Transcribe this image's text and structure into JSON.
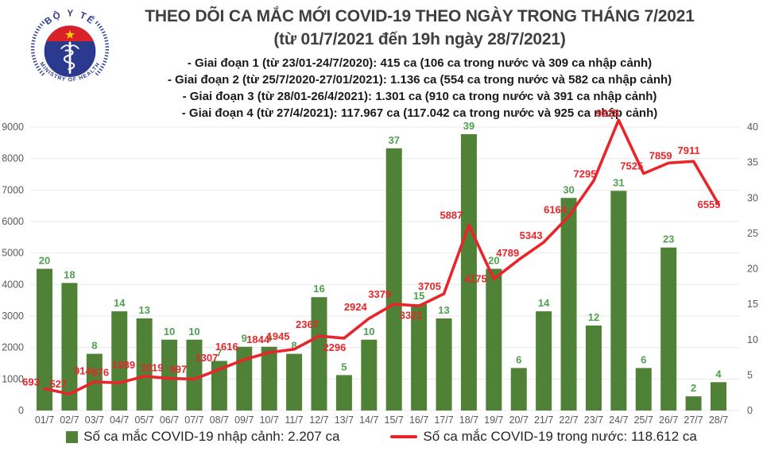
{
  "header": {
    "logo": {
      "top_text": "BỘ Y TẾ",
      "bottom_text": "MINISTRY OF HEALTH"
    },
    "title_line1": "THEO DÕI CA MẮC MỚI COVID-19 THEO NGÀY TRONG THÁNG 7/2021",
    "title_line2": "(từ 01/7/2021 đến 19h ngày 28/7/2021)",
    "bullets": [
      "- Giai đoạn 1 (từ 23/01-24/7/2020): 415 ca (106 ca trong nước và 309 ca nhập cảnh)",
      "- Giai đoạn 2 (từ 25/7/2020-27/01/2021): 1.136 ca (554 ca trong nước và 582 ca nhập cảnh)",
      "- Giai đoạn 3 (từ 28/01-26/4/2021): 1.301 ca (910 ca trong nước và 391 ca nhập cảnh)",
      "- Giai đoạn 4 (từ 27/4/2021): 117.967 ca (117.042 ca trong nước và 925 ca nhập cảnh)"
    ]
  },
  "chart_data": {
    "type": "combo-bar-line",
    "categories": [
      "01/7",
      "02/7",
      "03/7",
      "04/7",
      "05/7",
      "06/7",
      "07/7",
      "08/7",
      "09/7",
      "10/7",
      "11/7",
      "12/7",
      "13/7",
      "14/7",
      "15/7",
      "16/7",
      "17/7",
      "18/7",
      "19/7",
      "20/7",
      "21/7",
      "22/7",
      "23/7",
      "24/7",
      "25/7",
      "26/7",
      "27/7",
      "28/7"
    ],
    "series": [
      {
        "name": "Số ca mắc COVID-19 nhập cảnh",
        "type": "bar",
        "axis": "right",
        "color": "#4f8136",
        "values": [
          20,
          18,
          8,
          14,
          13,
          10,
          10,
          7,
          9,
          9,
          8,
          16,
          5,
          10,
          37,
          15,
          13,
          39,
          20,
          6,
          14,
          30,
          12,
          31,
          6,
          23,
          2,
          4
        ]
      },
      {
        "name": "Số ca mắc COVID-19 trong nước",
        "type": "line",
        "axis": "left",
        "color": "#e8252a",
        "values": [
          693,
          527,
          914,
          876,
          1089,
          1019,
          997,
          1307,
          1616,
          1844,
          1945,
          2367,
          2296,
          2924,
          3379,
          3321,
          3705,
          5887,
          4175,
          4789,
          5343,
          6164,
          7295,
          9225,
          7525,
          7859,
          7911,
          6555
        ]
      }
    ],
    "left_axis": {
      "min": 0,
      "max": 9000,
      "step": 1000,
      "ticks": [
        "0",
        "1000",
        "2000",
        "3000",
        "4000",
        "5000",
        "6000",
        "7000",
        "8000",
        "9000"
      ]
    },
    "right_axis": {
      "min": 0,
      "max": 40,
      "step": 5,
      "ticks": [
        "0",
        "5",
        "10",
        "15",
        "20",
        "25",
        "30",
        "35",
        "40"
      ]
    },
    "grid": true,
    "legend_position": "bottom",
    "title": "THEO DÕI CA MẮC MỚI COVID-19 THEO NGÀY TRONG THÁNG 7/2021"
  },
  "legend": {
    "bar_label": "Số ca mắc COVID-19 nhập cảnh: 2.207 ca",
    "line_label": "Số ca mắc COVID-19 trong nước: 118.612 ca"
  },
  "colors": {
    "bar": "#4f8136",
    "bar_label": "#4fa04f",
    "line": "#e8252a",
    "line_label": "#e8252a",
    "grid": "#e9e9e9",
    "axis_text": "#595959",
    "title_text": "#3f3f3f",
    "logo_blue": "#2b3a8f",
    "logo_red": "#da2128",
    "logo_star": "#ffd100"
  }
}
